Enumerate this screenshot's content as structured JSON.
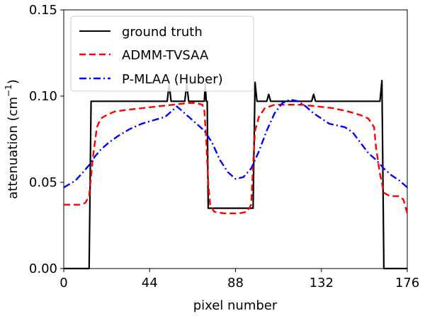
{
  "chart_data": {
    "type": "line",
    "title": "",
    "xlabel": "pixel number",
    "ylabel_main": "attenuation (cm",
    "ylabel_sup": "−1",
    "ylabel_end": ")",
    "xlim": [
      0,
      176
    ],
    "ylim": [
      0.0,
      0.15
    ],
    "xticks": [
      0,
      44,
      88,
      132,
      176
    ],
    "yticks": [
      0.0,
      0.05,
      0.1,
      0.15
    ],
    "xtick_labels": [
      "0",
      "44",
      "88",
      "132",
      "176"
    ],
    "ytick_labels": [
      "0.00",
      "0.05",
      "0.10",
      "0.15"
    ],
    "legend_position": "top-left",
    "series": [
      {
        "name": "ground truth",
        "color": "#000000",
        "dash": "solid",
        "points": [
          [
            0,
            0.0
          ],
          [
            12,
            0.0
          ],
          [
            13,
            0.0
          ],
          [
            14,
            0.097
          ],
          [
            15,
            0.097
          ],
          [
            52,
            0.097
          ],
          [
            53,
            0.097
          ],
          [
            54,
            0.107
          ],
          [
            55,
            0.097
          ],
          [
            62,
            0.097
          ],
          [
            63,
            0.107
          ],
          [
            64,
            0.097
          ],
          [
            71,
            0.097
          ],
          [
            72,
            0.097
          ],
          [
            72.5,
            0.107
          ],
          [
            73,
            0.097
          ],
          [
            73.5,
            0.097
          ],
          [
            74,
            0.035
          ],
          [
            75,
            0.035
          ],
          [
            96,
            0.035
          ],
          [
            97,
            0.035
          ],
          [
            98,
            0.108
          ],
          [
            99,
            0.097
          ],
          [
            104,
            0.097
          ],
          [
            105,
            0.101
          ],
          [
            106,
            0.097
          ],
          [
            127,
            0.097
          ],
          [
            128,
            0.101
          ],
          [
            129,
            0.097
          ],
          [
            161,
            0.097
          ],
          [
            162,
            0.097
          ],
          [
            163,
            0.109
          ],
          [
            164,
            0.0
          ],
          [
            165,
            0.0
          ],
          [
            176,
            0.0
          ]
        ]
      },
      {
        "name": "ADMM-TVSAA",
        "color": "#ff0000",
        "dash": "dashed",
        "points": [
          [
            0,
            0.037
          ],
          [
            8,
            0.037
          ],
          [
            11,
            0.038
          ],
          [
            13,
            0.042
          ],
          [
            15,
            0.065
          ],
          [
            17,
            0.082
          ],
          [
            19,
            0.087
          ],
          [
            22,
            0.089
          ],
          [
            26,
            0.091
          ],
          [
            32,
            0.092
          ],
          [
            40,
            0.093
          ],
          [
            48,
            0.094
          ],
          [
            56,
            0.095
          ],
          [
            64,
            0.096
          ],
          [
            68,
            0.096
          ],
          [
            71,
            0.095
          ],
          [
            72,
            0.092
          ],
          [
            73,
            0.075
          ],
          [
            74,
            0.05
          ],
          [
            75,
            0.037
          ],
          [
            77,
            0.033
          ],
          [
            82,
            0.032
          ],
          [
            90,
            0.032
          ],
          [
            94,
            0.033
          ],
          [
            96,
            0.037
          ],
          [
            97,
            0.06
          ],
          [
            98,
            0.08
          ],
          [
            100,
            0.088
          ],
          [
            103,
            0.093
          ],
          [
            108,
            0.095
          ],
          [
            115,
            0.095
          ],
          [
            122,
            0.095
          ],
          [
            130,
            0.094
          ],
          [
            138,
            0.093
          ],
          [
            146,
            0.091
          ],
          [
            152,
            0.089
          ],
          [
            156,
            0.087
          ],
          [
            159,
            0.082
          ],
          [
            160,
            0.07
          ],
          [
            162,
            0.055
          ],
          [
            164,
            0.044
          ],
          [
            167,
            0.042
          ],
          [
            172,
            0.042
          ],
          [
            174,
            0.04
          ],
          [
            176,
            0.032
          ]
        ]
      },
      {
        "name": "P-MLAA (Huber)",
        "color": "#0000ff",
        "dash": "dashdot",
        "points": [
          [
            0,
            0.047
          ],
          [
            6,
            0.051
          ],
          [
            10,
            0.056
          ],
          [
            13,
            0.06
          ],
          [
            16,
            0.065
          ],
          [
            19,
            0.069
          ],
          [
            23,
            0.073
          ],
          [
            28,
            0.077
          ],
          [
            34,
            0.081
          ],
          [
            40,
            0.084
          ],
          [
            46,
            0.086
          ],
          [
            52,
            0.088
          ],
          [
            56,
            0.092
          ],
          [
            58,
            0.094
          ],
          [
            60,
            0.092
          ],
          [
            64,
            0.088
          ],
          [
            68,
            0.084
          ],
          [
            72,
            0.08
          ],
          [
            76,
            0.073
          ],
          [
            80,
            0.063
          ],
          [
            84,
            0.056
          ],
          [
            88,
            0.052
          ],
          [
            92,
            0.053
          ],
          [
            96,
            0.058
          ],
          [
            100,
            0.068
          ],
          [
            104,
            0.08
          ],
          [
            108,
            0.09
          ],
          [
            112,
            0.096
          ],
          [
            116,
            0.098
          ],
          [
            120,
            0.097
          ],
          [
            124,
            0.094
          ],
          [
            128,
            0.09
          ],
          [
            132,
            0.087
          ],
          [
            136,
            0.084
          ],
          [
            140,
            0.083
          ],
          [
            144,
            0.082
          ],
          [
            148,
            0.079
          ],
          [
            152,
            0.073
          ],
          [
            156,
            0.067
          ],
          [
            160,
            0.063
          ],
          [
            164,
            0.058
          ],
          [
            168,
            0.054
          ],
          [
            172,
            0.051
          ],
          [
            176,
            0.047
          ]
        ]
      }
    ]
  }
}
